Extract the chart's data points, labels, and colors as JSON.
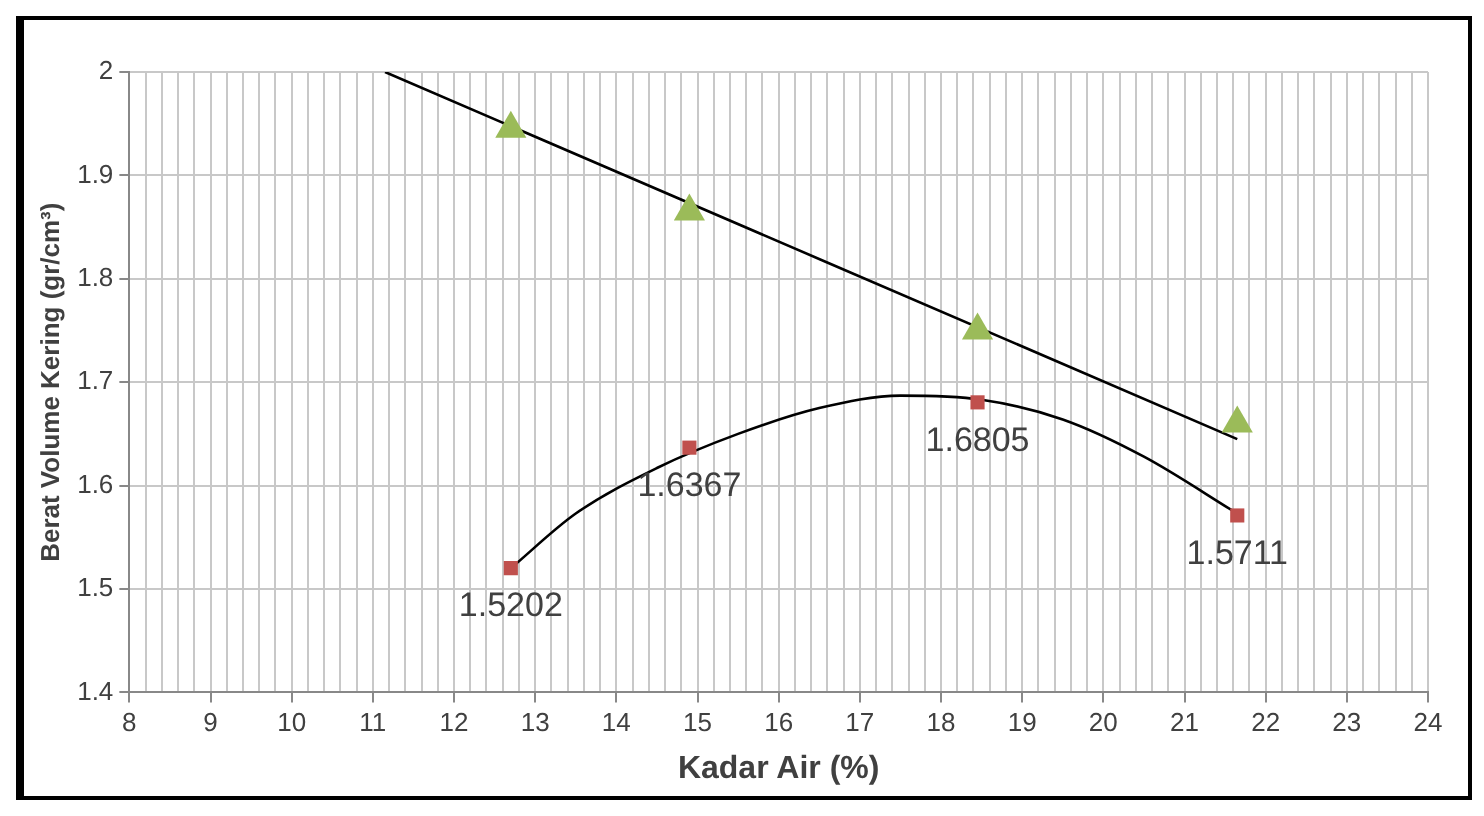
{
  "chart_data": {
    "type": "scatter",
    "xlabel": "Kadar Air (%)",
    "ylabel": "Berat Volume Kering (gr/cm³)",
    "xlim": [
      8,
      24
    ],
    "ylim": [
      1.4,
      2
    ],
    "xticks": [
      8,
      {
        "value": 8.2,
        "label": null
      },
      {
        "value": 8.4,
        "label": null
      },
      {
        "value": 8.6,
        "label": null
      },
      {
        "value": 8.8,
        "label": null
      },
      9,
      {
        "value": 9.2,
        "label": null
      },
      {
        "value": 9.4,
        "label": null
      },
      {
        "value": 9.6,
        "label": null
      },
      {
        "value": 9.8,
        "label": null
      },
      10,
      {
        "value": 10.2,
        "label": null
      },
      {
        "value": 10.4,
        "label": null
      },
      {
        "value": 10.6,
        "label": null
      },
      {
        "value": 10.8,
        "label": null
      },
      11,
      {
        "value": 11.2,
        "label": null
      },
      {
        "value": 11.4,
        "label": null
      },
      {
        "value": 11.6,
        "label": null
      },
      {
        "value": 11.8,
        "label": null
      },
      12,
      {
        "value": 12.2,
        "label": null
      },
      {
        "value": 12.4,
        "label": null
      },
      {
        "value": 12.6,
        "label": null
      },
      {
        "value": 12.8,
        "label": null
      },
      13,
      {
        "value": 13.2,
        "label": null
      },
      {
        "value": 13.4,
        "label": null
      },
      {
        "value": 13.6,
        "label": null
      },
      {
        "value": 13.8,
        "label": null
      },
      14,
      {
        "value": 14.2,
        "label": null
      },
      {
        "value": 14.4,
        "label": null
      },
      {
        "value": 14.6,
        "label": null
      },
      {
        "value": 14.8,
        "label": null
      },
      15,
      {
        "value": 15.2,
        "label": null
      },
      {
        "value": 15.4,
        "label": null
      },
      {
        "value": 15.6,
        "label": null
      },
      {
        "value": 15.8,
        "label": null
      },
      16,
      {
        "value": 16.2,
        "label": null
      },
      {
        "value": 16.4,
        "label": null
      },
      {
        "value": 16.6,
        "label": null
      },
      {
        "value": 16.8,
        "label": null
      },
      17,
      {
        "value": 17.2,
        "label": null
      },
      {
        "value": 17.4,
        "label": null
      },
      {
        "value": 17.6,
        "label": null
      },
      {
        "value": 17.8,
        "label": null
      },
      18,
      {
        "value": 18.2,
        "label": null
      },
      {
        "value": 18.4,
        "label": null
      },
      {
        "value": 18.6,
        "label": null
      },
      {
        "value": 18.8,
        "label": null
      },
      19,
      {
        "value": 19.2,
        "label": null
      },
      {
        "value": 19.4,
        "label": null
      },
      {
        "value": 19.6,
        "label": null
      },
      {
        "value": 19.8,
        "label": null
      },
      20,
      {
        "value": 20.2,
        "label": null
      },
      {
        "value": 20.4,
        "label": null
      },
      {
        "value": 20.6,
        "label": null
      },
      {
        "value": 20.8,
        "label": null
      },
      21,
      {
        "value": 21.2,
        "label": null
      },
      {
        "value": 21.4,
        "label": null
      },
      {
        "value": 21.6,
        "label": null
      },
      {
        "value": 21.8,
        "label": null
      },
      22,
      {
        "value": 22.2,
        "label": null
      },
      {
        "value": 22.4,
        "label": null
      },
      {
        "value": 22.6,
        "label": null
      },
      {
        "value": 22.8,
        "label": null
      },
      23,
      {
        "value": 23.2,
        "label": null
      },
      {
        "value": 23.4,
        "label": null
      },
      {
        "value": 23.6,
        "label": null
      },
      {
        "value": 23.8,
        "label": null
      },
      24
    ],
    "yticks": [
      1.4,
      1.5,
      1.6,
      1.7,
      1.8,
      1.9,
      2
    ],
    "grid": true,
    "legend": false,
    "series": [
      {
        "type": "scatter",
        "marker": "triangle",
        "color": "#9bbb59",
        "x": [
          12.7,
          14.9,
          18.45,
          21.65
        ],
        "values": [
          1.945,
          1.865,
          1.75,
          1.66
        ]
      },
      {
        "type": "scatter",
        "marker": "square",
        "color": "#c0504d",
        "x": [
          12.7,
          14.9,
          18.45,
          21.65
        ],
        "values": [
          1.5202,
          1.6367,
          1.6805,
          1.5711
        ],
        "value_labels": [
          "1.5202",
          "1.6367",
          "1.6805",
          "1.5711"
        ]
      },
      {
        "type": "line",
        "marker": "none",
        "line_style": "solid",
        "color": "#000000",
        "x": [
          11.15,
          21.65
        ],
        "values": [
          2.0,
          1.645
        ]
      },
      {
        "type": "line",
        "marker": "none",
        "line_style": "solid",
        "color": "#000000",
        "x": [
          12.7,
          13.5,
          14.5,
          15.5,
          16.5,
          17.5,
          18.5,
          19.5,
          20.5,
          21.65
        ],
        "values": [
          1.52,
          1.573,
          1.617,
          1.65,
          1.675,
          1.687,
          1.683,
          1.664,
          1.628,
          1.573
        ]
      }
    ]
  }
}
